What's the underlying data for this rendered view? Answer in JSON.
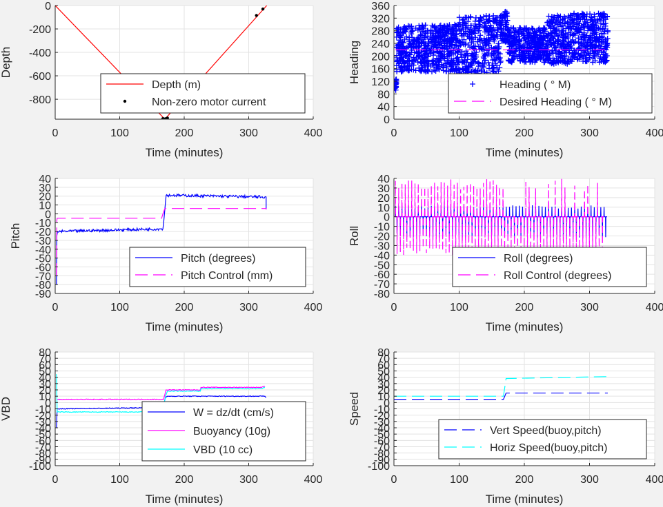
{
  "colors": {
    "background": "#f2f2f2",
    "axes": "#ffffff",
    "grid": "#e3e3e3",
    "axis_line": "#262626",
    "red": "#ff0000",
    "blue": "#0000ff",
    "magenta": "#ff00ff",
    "cyan": "#00ffff",
    "black": "#000000"
  },
  "chart_data": [
    {
      "id": "depth",
      "type": "line",
      "xlabel": "Time (minutes)",
      "ylabel": "Depth",
      "xlim": [
        0,
        400
      ],
      "ylim": [
        -970,
        0
      ],
      "xticks": [
        0,
        100,
        200,
        300,
        400
      ],
      "yticks": [
        0,
        -200,
        -400,
        -600,
        -800
      ],
      "ytick_labels": [
        "0",
        "-200",
        "-400",
        "-600",
        "-800"
      ],
      "grid": true,
      "legend_position": "bottom-right",
      "series": [
        {
          "name": "Depth (m)",
          "style": "solid",
          "color": "red",
          "x": [
            0,
            170,
            328
          ],
          "y": [
            0,
            -970,
            0
          ]
        },
        {
          "name": "Non-zero motor current",
          "style": "dots",
          "color": "black",
          "x": [
            167,
            168,
            169,
            170,
            171,
            172,
            174,
            226,
            312,
            322
          ],
          "y": [
            -965,
            -968,
            -970,
            -970,
            -968,
            -965,
            -960,
            -628,
            -85,
            -30
          ]
        }
      ]
    },
    {
      "id": "heading",
      "type": "scatter",
      "xlabel": "Time (minutes)",
      "ylabel": "Heading",
      "xlim": [
        0,
        400
      ],
      "ylim": [
        0,
        360
      ],
      "xticks": [
        0,
        100,
        200,
        300,
        400
      ],
      "yticks": [
        0,
        40,
        80,
        120,
        160,
        200,
        240,
        280,
        320,
        360
      ],
      "ytick_labels": [
        "0",
        "40",
        "80",
        "120",
        "160",
        "200",
        "240",
        "280",
        "320",
        "360"
      ],
      "grid": true,
      "legend_position": "bottom-right",
      "series": [
        {
          "name": "Heading (  ° M)",
          "style": "plus",
          "color": "blue",
          "bands": [
            [
              0,
              4,
              90,
              130
            ],
            [
              4,
              100,
              150,
              300
            ],
            [
              100,
              165,
              110,
              330
            ],
            [
              165,
              175,
              240,
              345
            ],
            [
              175,
              235,
              180,
              290
            ],
            [
              235,
              270,
              175,
              330
            ],
            [
              270,
              328,
              180,
              335
            ]
          ]
        },
        {
          "name": "Desired Heading (    ° M)",
          "style": "dashed",
          "color": "magenta",
          "x": [
            2,
            328
          ],
          "y": [
            220,
            220
          ]
        }
      ]
    },
    {
      "id": "pitch",
      "type": "line",
      "xlabel": "Time (minutes)",
      "ylabel": "Pitch",
      "xlim": [
        0,
        400
      ],
      "ylim": [
        -90,
        40
      ],
      "xticks": [
        0,
        100,
        200,
        300,
        400
      ],
      "yticks": [
        40,
        30,
        20,
        10,
        0,
        -10,
        -20,
        -30,
        -40,
        -50,
        -60,
        -70,
        -80,
        -90
      ],
      "ytick_labels": [
        "40",
        "30",
        "20",
        "10",
        "0",
        "-10",
        "-20",
        "-30",
        "-40",
        "-50",
        "-60",
        "-70",
        "-80",
        "-90"
      ],
      "grid": true,
      "legend_position": "bottom-right",
      "series": [
        {
          "name": "Pitch (degrees)",
          "style": "solid",
          "color": "blue",
          "x": [
            2,
            2.5,
            4,
            165,
            167,
            170,
            172,
            325,
            327,
            327
          ],
          "y": [
            -80,
            -25,
            -20,
            -17,
            -17,
            5,
            21,
            19,
            19,
            5
          ]
        },
        {
          "name": "Pitch Control (mm)",
          "style": "dashed",
          "color": "magenta",
          "x": [
            2,
            2.5,
            3,
            165,
            167,
            170,
            327,
            327
          ],
          "y": [
            -70,
            -8,
            -5,
            -5,
            0,
            6,
            6,
            5
          ]
        }
      ]
    },
    {
      "id": "roll",
      "type": "line",
      "xlabel": "Time (minutes)",
      "ylabel": "Roll",
      "xlim": [
        0,
        400
      ],
      "ylim": [
        -80,
        40
      ],
      "xticks": [
        0,
        100,
        200,
        300,
        400
      ],
      "yticks": [
        40,
        30,
        20,
        10,
        0,
        -10,
        -20,
        -30,
        -40,
        -50,
        -60,
        -70,
        -80
      ],
      "ytick_labels": [
        "40",
        "30",
        "20",
        "10",
        "0",
        "-10",
        "-20",
        "-30",
        "-40",
        "-50",
        "-60",
        "-70",
        "-80"
      ],
      "grid": true,
      "legend_position": "bottom-right",
      "series": [
        {
          "name": "Roll (degrees)",
          "style": "solid",
          "color": "blue",
          "baseline": 0,
          "spike_period": 5,
          "spike_hi": 12,
          "spike_lo": -22,
          "x_end": 327
        },
        {
          "name": "Roll Control (degrees)",
          "style": "dashed",
          "color": "magenta",
          "baseline": 0,
          "spike_period": 5,
          "spike_hi": 40,
          "spike_lo": -40,
          "x_end": 322
        }
      ]
    },
    {
      "id": "vbd",
      "type": "line",
      "xlabel": "Time (minutes)",
      "ylabel": "VBD",
      "xlim": [
        0,
        400
      ],
      "ylim": [
        -100,
        80
      ],
      "xticks": [
        0,
        100,
        200,
        300,
        400
      ],
      "yticks": [
        80,
        70,
        60,
        50,
        40,
        30,
        20,
        10,
        0,
        -10,
        -20,
        -30,
        -40,
        -50,
        -60,
        -70,
        -80,
        -90,
        -100
      ],
      "ytick_labels": [
        "80",
        "70",
        "60",
        "50",
        "40",
        "30",
        "20",
        "10",
        "0",
        "-10",
        "-20",
        "-30",
        "-40",
        "-50",
        "-60",
        "-70",
        "-80",
        "-90",
        "-100"
      ],
      "grid": true,
      "legend_position": "bottom-right",
      "series": [
        {
          "name": "W = dz/dt (cm/s)",
          "style": "solid",
          "color": "blue",
          "x": [
            2,
            3,
            4,
            165,
            167,
            171,
            174,
            325,
            327
          ],
          "y": [
            -40,
            -10,
            -10,
            -8,
            -8,
            8,
            10,
            10,
            8
          ]
        },
        {
          "name": "Buoyancy (10g)",
          "style": "solid",
          "color": "magenta",
          "x": [
            2,
            165,
            168,
            172,
            225,
            226,
            320,
            325
          ],
          "y": [
            5,
            5,
            5,
            20,
            20,
            24,
            24,
            26
          ]
        },
        {
          "name": "VBD (10 cc)",
          "style": "solid",
          "color": "cyan",
          "x": [
            2,
            3,
            165,
            167,
            171,
            174,
            225,
            226,
            320,
            325
          ],
          "y": [
            45,
            -15,
            -15,
            -15,
            10,
            18,
            18,
            22,
            22,
            24
          ]
        }
      ]
    },
    {
      "id": "speed",
      "type": "line",
      "xlabel": "Time (minutes)",
      "ylabel": "Speed",
      "xlim": [
        0,
        400
      ],
      "ylim": [
        -100,
        80
      ],
      "xticks": [
        0,
        100,
        200,
        300,
        400
      ],
      "yticks": [
        80,
        70,
        60,
        50,
        40,
        30,
        20,
        10,
        0,
        -10,
        -20,
        -30,
        -40,
        -50,
        -60,
        -70,
        -80,
        -90,
        -100
      ],
      "ytick_labels": [
        "80",
        "70",
        "60",
        "50",
        "40",
        "30",
        "20",
        "10",
        "0",
        "-10",
        "-20",
        "-30",
        "-40",
        "-50",
        "-60",
        "-70",
        "-80",
        "-90",
        "-100"
      ],
      "grid": true,
      "legend_position": "bottom-right",
      "series": [
        {
          "name": "Vert Speed(buoy,pitch)",
          "style": "dashed",
          "color": "blue",
          "x": [
            0,
            160,
            168,
            172,
            328
          ],
          "y": [
            5,
            5,
            5,
            15,
            15
          ]
        },
        {
          "name": "Horiz Speed(buoy,pitch)",
          "style": "dashed",
          "color": "cyan",
          "x": [
            0,
            160,
            168,
            172,
            328
          ],
          "y": [
            10,
            10,
            10,
            38,
            41
          ]
        }
      ]
    }
  ]
}
